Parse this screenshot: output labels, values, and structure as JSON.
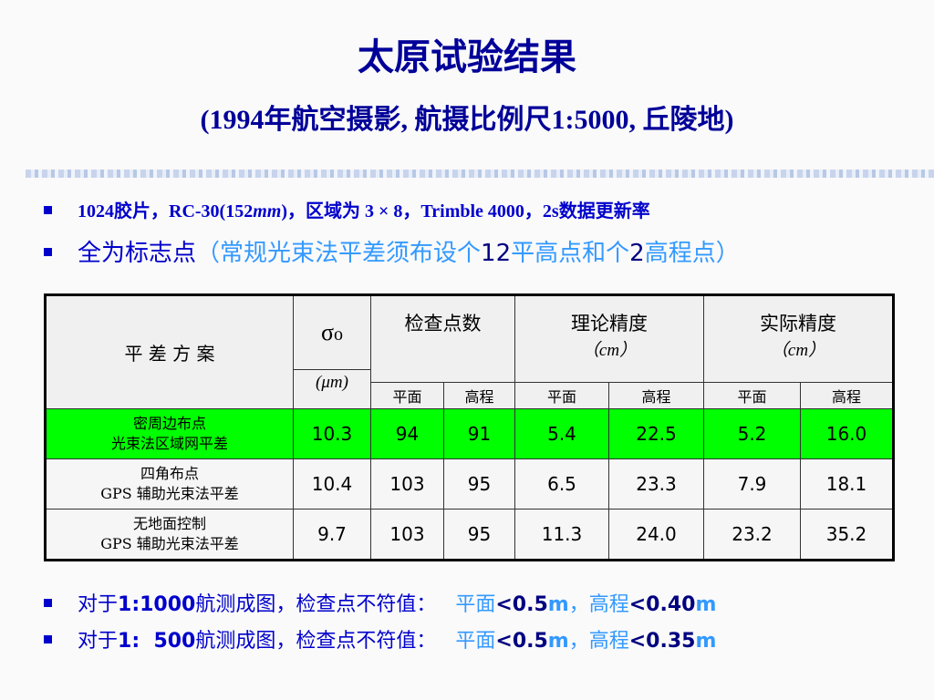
{
  "header": {
    "title": "太原试验结果",
    "subtitle": "(1994年航空摄影, 航摄比例尺1:5000, 丘陵地)"
  },
  "bullets": [
    {
      "segments": [
        "1024胶片，RC-30(152",
        "mm",
        ")，区域为 3 × 8，Trimble 4000，2s数据更新率"
      ]
    },
    {
      "segments": [
        "全为标志点",
        "（常规光束法平差须布设个",
        "12",
        "平高点和个",
        "2",
        "高程点）"
      ]
    }
  ],
  "table": {
    "method_header": "平 差 方 案",
    "sigma": "σ",
    "sigma_sub": "o",
    "sigma_unit": "(μm)",
    "groups": [
      {
        "label": "检查点数"
      },
      {
        "label": "理论精度",
        "unit": "（cm）"
      },
      {
        "label": "实际精度",
        "unit": "（cm）"
      }
    ],
    "subheaders": [
      "平面",
      "高程",
      "平面",
      "高程",
      "平面",
      "高程"
    ],
    "rows": [
      {
        "method": [
          "密周边布点",
          "光束法区域网平差"
        ],
        "values": [
          "10.3",
          "94",
          "91",
          "5.4",
          "22.5",
          "5.2",
          "16.0"
        ]
      },
      {
        "method": [
          "四角布点",
          "GPS 辅助光束法平差"
        ],
        "values": [
          "10.4",
          "103",
          "95",
          "6.5",
          "23.3",
          "7.9",
          "18.1"
        ]
      },
      {
        "method": [
          "无地面控制",
          "GPS 辅助光束法平差"
        ],
        "values": [
          "9.7",
          "103",
          "95",
          "11.3",
          "24.0",
          "23.2",
          "35.2"
        ]
      }
    ]
  },
  "notes": [
    {
      "segments": [
        "对于",
        "1:1000",
        "航测成图，检查点不符值：",
        "平面",
        "<0.5",
        "m",
        "，高程",
        "<0.40",
        "m"
      ]
    },
    {
      "segments": [
        "对于",
        "1:  500",
        "航测成图，检查点不符值：",
        "平面",
        "<0.5",
        "m",
        "，高程",
        "<0.35",
        "m"
      ]
    }
  ]
}
